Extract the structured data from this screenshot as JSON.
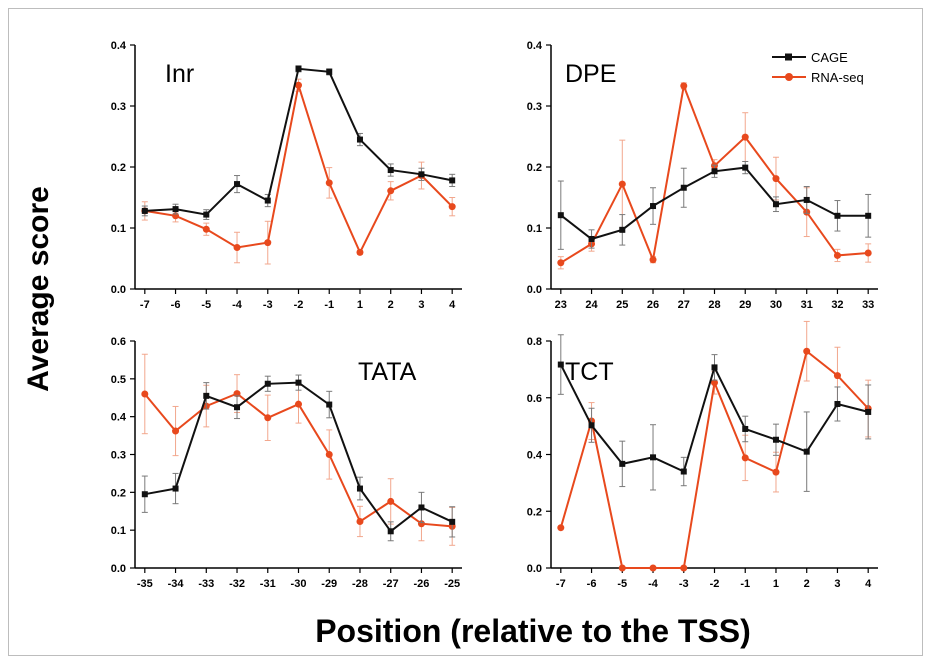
{
  "figure": {
    "ylabel": "Average score",
    "xlabel": "Position (relative to the TSS)"
  },
  "legend": [
    {
      "name": "CAGE",
      "color": "#111111",
      "marker": "square"
    },
    {
      "name": "RNA-seq",
      "color": "#e8491d",
      "marker": "circle"
    }
  ],
  "chart_data": [
    {
      "type": "line",
      "title": "Inr",
      "x": [
        "-7",
        "-6",
        "-5",
        "-4",
        "-3",
        "-2",
        "-1",
        "1",
        "2",
        "3",
        "4"
      ],
      "ylim": [
        0,
        0.4
      ],
      "yticks": [
        "0.0",
        "0.1",
        "0.2",
        "0.3",
        "0.4"
      ],
      "series": [
        {
          "name": "CAGE",
          "values": [
            0.128,
            0.131,
            0.122,
            0.172,
            0.145,
            0.361,
            0.356,
            0.245,
            0.195,
            0.188,
            0.178
          ],
          "errors": [
            0.008,
            0.008,
            0.008,
            0.014,
            0.01,
            0.005,
            0.005,
            0.01,
            0.01,
            0.01,
            0.01
          ]
        },
        {
          "name": "RNA-seq",
          "values": [
            0.128,
            0.12,
            0.098,
            0.068,
            0.076,
            0.334,
            0.174,
            0.06,
            0.161,
            0.186,
            0.135
          ],
          "errors": [
            0.015,
            0.01,
            0.01,
            0.025,
            0.035,
            0.01,
            0.025,
            0.003,
            0.015,
            0.022,
            0.015
          ]
        }
      ]
    },
    {
      "type": "line",
      "title": "DPE",
      "x": [
        "23",
        "24",
        "25",
        "26",
        "27",
        "28",
        "29",
        "30",
        "31",
        "32",
        "33"
      ],
      "ylim": [
        0,
        0.4
      ],
      "yticks": [
        "0.0",
        "0.1",
        "0.2",
        "0.3",
        "0.4"
      ],
      "series": [
        {
          "name": "CAGE",
          "values": [
            0.121,
            0.082,
            0.097,
            0.136,
            0.166,
            0.193,
            0.199,
            0.139,
            0.146,
            0.12,
            0.12
          ],
          "errors": [
            0.056,
            0.015,
            0.025,
            0.03,
            0.032,
            0.01,
            0.01,
            0.012,
            0.022,
            0.025,
            0.035
          ]
        },
        {
          "name": "RNA-seq",
          "values": [
            0.043,
            0.074,
            0.172,
            0.048,
            0.333,
            0.202,
            0.249,
            0.181,
            0.126,
            0.055,
            0.059
          ],
          "errors": [
            0.01,
            0.012,
            0.072,
            0.005,
            0.005,
            0.01,
            0.04,
            0.035,
            0.04,
            0.01,
            0.015
          ]
        }
      ]
    },
    {
      "type": "line",
      "title": "TATA",
      "x": [
        "-35",
        "-34",
        "-33",
        "-32",
        "-31",
        "-30",
        "-29",
        "-28",
        "-27",
        "-26",
        "-25"
      ],
      "ylim": [
        0,
        0.6
      ],
      "yticks": [
        "0.0",
        "0.1",
        "0.2",
        "0.3",
        "0.4",
        "0.5",
        "0.6"
      ],
      "series": [
        {
          "name": "CAGE",
          "values": [
            0.195,
            0.21,
            0.455,
            0.425,
            0.487,
            0.49,
            0.432,
            0.21,
            0.097,
            0.16,
            0.122
          ],
          "errors": [
            0.048,
            0.04,
            0.035,
            0.03,
            0.02,
            0.02,
            0.035,
            0.03,
            0.025,
            0.04,
            0.04
          ]
        },
        {
          "name": "RNA-seq",
          "values": [
            0.46,
            0.362,
            0.428,
            0.461,
            0.397,
            0.433,
            0.3,
            0.123,
            0.176,
            0.117,
            0.11
          ],
          "errors": [
            0.105,
            0.065,
            0.055,
            0.05,
            0.06,
            0.05,
            0.065,
            0.04,
            0.06,
            0.045,
            0.05
          ]
        }
      ]
    },
    {
      "type": "line",
      "title": "TCT",
      "x": [
        "-7",
        "-6",
        "-5",
        "-4",
        "-3",
        "-2",
        "-1",
        "1",
        "2",
        "3",
        "4"
      ],
      "ylim": [
        0,
        0.8
      ],
      "yticks": [
        "0.0",
        "0.2",
        "0.4",
        "0.6",
        "0.8"
      ],
      "series": [
        {
          "name": "CAGE",
          "values": [
            0.717,
            0.503,
            0.367,
            0.39,
            0.34,
            0.707,
            0.49,
            0.452,
            0.41,
            0.578,
            0.55
          ],
          "errors": [
            0.105,
            0.06,
            0.08,
            0.115,
            0.05,
            0.045,
            0.045,
            0.055,
            0.14,
            0.06,
            0.095
          ]
        },
        {
          "name": "RNA-seq",
          "values": [
            0.142,
            0.518,
            0.0,
            0.0,
            0.0,
            0.653,
            0.388,
            0.338,
            0.764,
            0.678,
            0.562
          ],
          "errors": [
            0.0,
            0.065,
            0.0,
            0.0,
            0.0,
            0.04,
            0.08,
            0.07,
            0.105,
            0.1,
            0.1
          ]
        }
      ]
    }
  ]
}
